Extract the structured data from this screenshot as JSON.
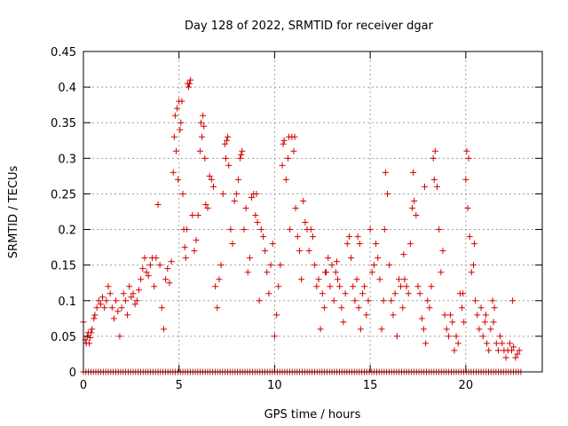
{
  "chart_data": {
    "type": "scatter",
    "title": "Day 128 of 2022, SRMTID for receiver dgar",
    "xlabel": "GPS time / hours",
    "ylabel": "SRMTID / TECUs",
    "xlim": [
      0,
      24
    ],
    "ylim": [
      0,
      0.45
    ],
    "xticks": [
      0,
      5,
      10,
      15,
      20
    ],
    "yticks": [
      0,
      0.05,
      0.1,
      0.15,
      0.2,
      0.25,
      0.3,
      0.35,
      0.4,
      0.45
    ],
    "grid": true,
    "marker": "plus",
    "color": "#d40000",
    "zero_baseline": {
      "x_start": 0,
      "x_end": 22.9,
      "step": 0.13,
      "value": 0
    },
    "points": [
      [
        0.0,
        0.07
      ],
      [
        0.1,
        0.045
      ],
      [
        0.15,
        0.04
      ],
      [
        0.2,
        0.05
      ],
      [
        0.25,
        0.055
      ],
      [
        0.3,
        0.04
      ],
      [
        0.35,
        0.048
      ],
      [
        0.4,
        0.055
      ],
      [
        0.45,
        0.06
      ],
      [
        0.55,
        0.075
      ],
      [
        0.6,
        0.08
      ],
      [
        0.7,
        0.09
      ],
      [
        0.8,
        0.1
      ],
      [
        0.9,
        0.095
      ],
      [
        1.0,
        0.105
      ],
      [
        1.1,
        0.09
      ],
      [
        1.2,
        0.1
      ],
      [
        1.3,
        0.12
      ],
      [
        1.4,
        0.11
      ],
      [
        1.5,
        0.09
      ],
      [
        1.6,
        0.075
      ],
      [
        1.7,
        0.1
      ],
      [
        1.8,
        0.085
      ],
      [
        1.9,
        0.05
      ],
      [
        2.0,
        0.09
      ],
      [
        2.1,
        0.11
      ],
      [
        2.2,
        0.1
      ],
      [
        2.3,
        0.08
      ],
      [
        2.4,
        0.12
      ],
      [
        2.5,
        0.105
      ],
      [
        2.6,
        0.11
      ],
      [
        2.7,
        0.095
      ],
      [
        2.8,
        0.1
      ],
      [
        2.9,
        0.115
      ],
      [
        3.0,
        0.13
      ],
      [
        3.1,
        0.145
      ],
      [
        3.2,
        0.16
      ],
      [
        3.3,
        0.14
      ],
      [
        3.4,
        0.135
      ],
      [
        3.5,
        0.15
      ],
      [
        3.6,
        0.16
      ],
      [
        3.7,
        0.12
      ],
      [
        3.8,
        0.16
      ],
      [
        3.9,
        0.235
      ],
      [
        4.0,
        0.15
      ],
      [
        4.1,
        0.09
      ],
      [
        4.2,
        0.06
      ],
      [
        4.3,
        0.13
      ],
      [
        4.4,
        0.145
      ],
      [
        4.5,
        0.125
      ],
      [
        4.6,
        0.155
      ],
      [
        4.7,
        0.28
      ],
      [
        4.75,
        0.33
      ],
      [
        4.8,
        0.36
      ],
      [
        4.9,
        0.37
      ],
      [
        5.0,
        0.38
      ],
      [
        5.1,
        0.35
      ],
      [
        5.2,
        0.25
      ],
      [
        5.25,
        0.2
      ],
      [
        5.3,
        0.175
      ],
      [
        5.35,
        0.16
      ],
      [
        5.4,
        0.2
      ],
      [
        5.5,
        0.4
      ],
      [
        5.55,
        0.405
      ],
      [
        5.6,
        0.41
      ],
      [
        5.7,
        0.22
      ],
      [
        5.8,
        0.17
      ],
      [
        5.9,
        0.185
      ],
      [
        6.0,
        0.22
      ],
      [
        6.1,
        0.31
      ],
      [
        6.2,
        0.33
      ],
      [
        6.25,
        0.36
      ],
      [
        6.3,
        0.345
      ],
      [
        6.4,
        0.235
      ],
      [
        6.5,
        0.23
      ],
      [
        6.6,
        0.275
      ],
      [
        6.7,
        0.27
      ],
      [
        6.8,
        0.26
      ],
      [
        6.9,
        0.12
      ],
      [
        7.0,
        0.09
      ],
      [
        7.1,
        0.13
      ],
      [
        7.2,
        0.15
      ],
      [
        7.3,
        0.25
      ],
      [
        7.4,
        0.32
      ],
      [
        7.5,
        0.325
      ],
      [
        7.6,
        0.29
      ],
      [
        7.7,
        0.2
      ],
      [
        7.8,
        0.18
      ],
      [
        7.9,
        0.24
      ],
      [
        8.0,
        0.25
      ],
      [
        8.1,
        0.27
      ],
      [
        8.2,
        0.3
      ],
      [
        8.3,
        0.31
      ],
      [
        8.4,
        0.2
      ],
      [
        8.5,
        0.23
      ],
      [
        8.6,
        0.14
      ],
      [
        8.7,
        0.16
      ],
      [
        8.8,
        0.245
      ],
      [
        8.9,
        0.25
      ],
      [
        9.0,
        0.22
      ],
      [
        9.1,
        0.21
      ],
      [
        9.2,
        0.1
      ],
      [
        9.3,
        0.2
      ],
      [
        9.4,
        0.19
      ],
      [
        9.5,
        0.17
      ],
      [
        9.6,
        0.14
      ],
      [
        9.7,
        0.11
      ],
      [
        9.8,
        0.15
      ],
      [
        9.9,
        0.18
      ],
      [
        10.0,
        0.05
      ],
      [
        10.1,
        0.08
      ],
      [
        10.2,
        0.12
      ],
      [
        10.3,
        0.15
      ],
      [
        10.4,
        0.29
      ],
      [
        10.5,
        0.325
      ],
      [
        10.6,
        0.27
      ],
      [
        10.7,
        0.3
      ],
      [
        10.8,
        0.2
      ],
      [
        10.9,
        0.33
      ],
      [
        11.0,
        0.31
      ],
      [
        11.1,
        0.23
      ],
      [
        11.2,
        0.19
      ],
      [
        11.3,
        0.17
      ],
      [
        11.4,
        0.13
      ],
      [
        11.5,
        0.24
      ],
      [
        11.6,
        0.21
      ],
      [
        11.7,
        0.2
      ],
      [
        11.8,
        0.17
      ],
      [
        11.9,
        0.2
      ],
      [
        12.0,
        0.19
      ],
      [
        12.1,
        0.15
      ],
      [
        12.2,
        0.12
      ],
      [
        12.3,
        0.13
      ],
      [
        12.4,
        0.06
      ],
      [
        12.5,
        0.11
      ],
      [
        12.6,
        0.09
      ],
      [
        12.7,
        0.14
      ],
      [
        12.8,
        0.16
      ],
      [
        12.9,
        0.12
      ],
      [
        13.0,
        0.15
      ],
      [
        13.1,
        0.1
      ],
      [
        13.2,
        0.14
      ],
      [
        13.3,
        0.13
      ],
      [
        13.4,
        0.12
      ],
      [
        13.5,
        0.09
      ],
      [
        13.6,
        0.07
      ],
      [
        13.7,
        0.11
      ],
      [
        13.8,
        0.18
      ],
      [
        13.9,
        0.19
      ],
      [
        14.0,
        0.16
      ],
      [
        14.1,
        0.12
      ],
      [
        14.2,
        0.1
      ],
      [
        14.3,
        0.13
      ],
      [
        14.4,
        0.09
      ],
      [
        14.5,
        0.06
      ],
      [
        14.6,
        0.11
      ],
      [
        14.7,
        0.12
      ],
      [
        14.8,
        0.08
      ],
      [
        14.9,
        0.1
      ],
      [
        15.0,
        0.2
      ],
      [
        15.1,
        0.14
      ],
      [
        15.2,
        0.15
      ],
      [
        15.3,
        0.18
      ],
      [
        15.4,
        0.16
      ],
      [
        15.5,
        0.13
      ],
      [
        15.6,
        0.06
      ],
      [
        15.7,
        0.1
      ],
      [
        15.8,
        0.28
      ],
      [
        15.9,
        0.25
      ],
      [
        16.0,
        0.15
      ],
      [
        16.1,
        0.1
      ],
      [
        16.2,
        0.08
      ],
      [
        16.3,
        0.11
      ],
      [
        16.4,
        0.05
      ],
      [
        16.5,
        0.13
      ],
      [
        16.6,
        0.12
      ],
      [
        16.7,
        0.09
      ],
      [
        16.8,
        0.13
      ],
      [
        16.9,
        0.12
      ],
      [
        17.0,
        0.11
      ],
      [
        17.1,
        0.18
      ],
      [
        17.2,
        0.23
      ],
      [
        17.3,
        0.24
      ],
      [
        17.4,
        0.22
      ],
      [
        17.5,
        0.12
      ],
      [
        17.6,
        0.11
      ],
      [
        17.7,
        0.075
      ],
      [
        17.8,
        0.06
      ],
      [
        17.9,
        0.04
      ],
      [
        18.0,
        0.1
      ],
      [
        18.1,
        0.09
      ],
      [
        18.2,
        0.12
      ],
      [
        18.3,
        0.3
      ],
      [
        18.4,
        0.31
      ],
      [
        18.5,
        0.26
      ],
      [
        18.6,
        0.2
      ],
      [
        18.7,
        0.14
      ],
      [
        18.8,
        0.17
      ],
      [
        18.9,
        0.08
      ],
      [
        19.0,
        0.06
      ],
      [
        19.1,
        0.05
      ],
      [
        19.2,
        0.08
      ],
      [
        19.3,
        0.07
      ],
      [
        19.4,
        0.03
      ],
      [
        19.5,
        0.05
      ],
      [
        19.6,
        0.04
      ],
      [
        19.7,
        0.11
      ],
      [
        19.8,
        0.09
      ],
      [
        19.9,
        0.07
      ],
      [
        20.0,
        0.27
      ],
      [
        20.1,
        0.23
      ],
      [
        20.2,
        0.19
      ],
      [
        20.3,
        0.14
      ],
      [
        20.4,
        0.15
      ],
      [
        20.5,
        0.1
      ],
      [
        20.6,
        0.08
      ],
      [
        20.7,
        0.06
      ],
      [
        20.8,
        0.09
      ],
      [
        20.9,
        0.05
      ],
      [
        21.0,
        0.07
      ],
      [
        21.1,
        0.04
      ],
      [
        21.2,
        0.03
      ],
      [
        21.3,
        0.06
      ],
      [
        21.4,
        0.1
      ],
      [
        21.5,
        0.09
      ],
      [
        21.6,
        0.04
      ],
      [
        21.7,
        0.03
      ],
      [
        21.8,
        0.05
      ],
      [
        21.9,
        0.04
      ],
      [
        22.0,
        0.03
      ],
      [
        22.1,
        0.02
      ],
      [
        22.2,
        0.03
      ],
      [
        22.3,
        0.04
      ],
      [
        22.4,
        0.03
      ],
      [
        22.5,
        0.035
      ],
      [
        22.6,
        0.02
      ],
      [
        22.7,
        0.025
      ],
      [
        22.8,
        0.03
      ],
      [
        5.05,
        0.34
      ],
      [
        4.85,
        0.31
      ],
      [
        4.95,
        0.27
      ],
      [
        5.15,
        0.38
      ],
      [
        5.45,
        0.405
      ],
      [
        6.15,
        0.35
      ],
      [
        6.35,
        0.3
      ],
      [
        7.45,
        0.3
      ],
      [
        7.55,
        0.33
      ],
      [
        8.25,
        0.305
      ],
      [
        9.05,
        0.25
      ],
      [
        10.45,
        0.32
      ],
      [
        10.75,
        0.33
      ],
      [
        11.05,
        0.33
      ],
      [
        12.65,
        0.14
      ],
      [
        13.25,
        0.155
      ],
      [
        14.35,
        0.19
      ],
      [
        14.45,
        0.18
      ],
      [
        15.75,
        0.2
      ],
      [
        16.75,
        0.165
      ],
      [
        17.25,
        0.28
      ],
      [
        17.85,
        0.26
      ],
      [
        18.35,
        0.27
      ],
      [
        19.85,
        0.11
      ],
      [
        20.05,
        0.31
      ],
      [
        20.15,
        0.3
      ],
      [
        20.45,
        0.18
      ],
      [
        21.05,
        0.08
      ],
      [
        21.45,
        0.07
      ],
      [
        22.45,
        0.1
      ]
    ]
  }
}
